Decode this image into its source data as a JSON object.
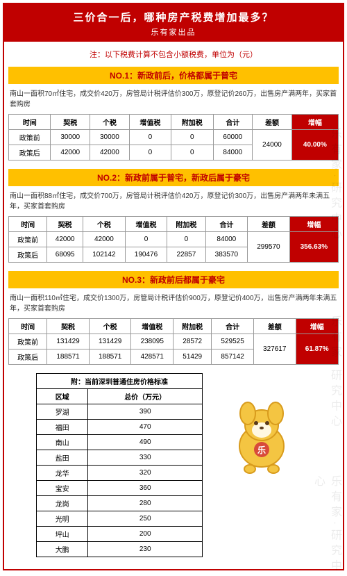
{
  "header": {
    "title": "三价合一后，哪种房产税费增加最多？",
    "sub": "乐有家出品"
  },
  "note": "注：以下税费计算不包含小额税费，单位为（元）",
  "columns": [
    "时间",
    "契税",
    "个税",
    "增值税",
    "附加税",
    "合计",
    "差额",
    "增幅"
  ],
  "sections": [
    {
      "heading": "NO.1：新政前后，价格都属于普宅",
      "desc": "南山一面积70㎡住宅，成交价420万，房管局计税评估价300万，原登记价260万，出售房产满两年，买家首套购房",
      "rows": [
        {
          "label": "政策前",
          "v": [
            "30000",
            "30000",
            "0",
            "0",
            "60000"
          ]
        },
        {
          "label": "政策后",
          "v": [
            "42000",
            "42000",
            "0",
            "0",
            "84000"
          ]
        }
      ],
      "diff": "24000",
      "rate": "40.00%"
    },
    {
      "heading": "NO.2：新政前属于普宅，新政后属于豪宅",
      "desc": "南山一面积88㎡住宅，成交价700万，房管局计税评估价420万，原登记价300万，出售房产满两年未满五年，买家首套购房",
      "rows": [
        {
          "label": "政策前",
          "v": [
            "42000",
            "42000",
            "0",
            "0",
            "84000"
          ]
        },
        {
          "label": "政策后",
          "v": [
            "68095",
            "102142",
            "190476",
            "22857",
            "383570"
          ]
        }
      ],
      "diff": "299570",
      "rate": "356.63%"
    },
    {
      "heading": "NO.3：新政前后都属于豪宅",
      "desc": "南山一面积110㎡住宅，成交价1300万，房管局计税评估价900万，原登记价400万，出售房产满两年未满五年，买家首套购房",
      "rows": [
        {
          "label": "政策前",
          "v": [
            "131429",
            "131429",
            "238095",
            "28572",
            "529525"
          ]
        },
        {
          "label": "政策后",
          "v": [
            "188571",
            "188571",
            "428571",
            "51429",
            "857142"
          ]
        }
      ],
      "diff": "327617",
      "rate": "61.87%"
    }
  ],
  "appendix": {
    "title": "附：当前深圳普通住房价格标准",
    "cols": [
      "区域",
      "总价（万元）"
    ],
    "rows": [
      [
        "罗湖",
        "390"
      ],
      [
        "福田",
        "470"
      ],
      [
        "南山",
        "490"
      ],
      [
        "盐田",
        "330"
      ],
      [
        "龙华",
        "320"
      ],
      [
        "宝安",
        "360"
      ],
      [
        "龙岗",
        "280"
      ],
      [
        "光明",
        "250"
      ],
      [
        "坪山",
        "200"
      ],
      [
        "大鹏",
        "230"
      ]
    ]
  },
  "watermark": "乐有家·研究中心",
  "colors": {
    "primary": "#c00000",
    "accent": "#ffc000"
  }
}
